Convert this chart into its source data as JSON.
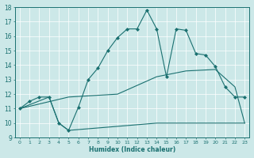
{
  "xlabel": "Humidex (Indice chaleur)",
  "ylabel": "",
  "bg_color": "#cce8e8",
  "line_color": "#1a7070",
  "xlim": [
    -0.5,
    23.5
  ],
  "ylim": [
    9,
    18
  ],
  "xticks": [
    0,
    1,
    2,
    3,
    4,
    5,
    6,
    7,
    8,
    9,
    10,
    11,
    12,
    13,
    14,
    15,
    16,
    17,
    18,
    19,
    20,
    21,
    22,
    23
  ],
  "yticks": [
    9,
    10,
    11,
    12,
    13,
    14,
    15,
    16,
    17,
    18
  ],
  "line1_x": [
    0,
    1,
    2,
    3,
    4,
    5,
    6,
    7,
    8,
    9,
    10,
    11,
    12,
    13,
    14,
    15,
    16,
    17,
    18,
    19,
    20,
    21,
    22,
    23
  ],
  "line1_y": [
    11,
    11.5,
    11.8,
    11.8,
    10.0,
    9.5,
    11.1,
    13.0,
    13.8,
    15.0,
    15.9,
    16.5,
    16.5,
    17.8,
    16.5,
    13.2,
    16.5,
    16.4,
    14.8,
    14.7,
    13.9,
    12.5,
    11.8,
    11.8
  ],
  "line2_x": [
    0,
    3,
    4,
    5,
    14,
    22,
    23
  ],
  "line2_y": [
    11,
    11.8,
    10.0,
    9.5,
    10.0,
    10.0,
    10.0
  ],
  "line3_x": [
    0,
    5,
    10,
    14,
    17,
    20,
    22,
    23
  ],
  "line3_y": [
    11,
    11.8,
    12.0,
    13.2,
    13.6,
    13.7,
    12.5,
    10.0
  ]
}
